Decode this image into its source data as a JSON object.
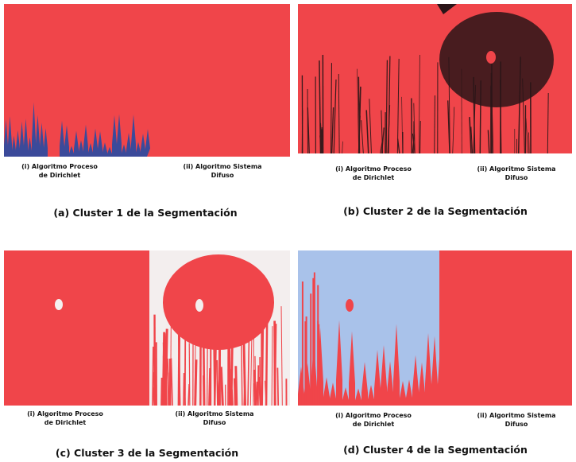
{
  "panels": [
    {
      "caption": "(a) Cluster 1 de la Segmentación",
      "sublabels": [
        [
          "(i) Algoritmo Proceso",
          "de Dirichlet"
        ],
        [
          "(ii) Algoritmo Sistema",
          "Difuso"
        ]
      ]
    },
    {
      "caption": "(b) Cluster 2 de la Segmentación",
      "sublabels": [
        [
          "(i) Algoritmo Proceso",
          "de Dirichlet"
        ],
        [
          "(ii) Algoritmo Sistema",
          "Difuso"
        ]
      ]
    },
    {
      "caption": "(c) Cluster 3 de la Segmentación",
      "sublabels": [
        [
          "(i) Algoritmo Proceso",
          "de Dirichlet"
        ],
        [
          "(ii) Algoritmo Sistema",
          "Difuso"
        ]
      ]
    },
    {
      "caption": "(d) Cluster 4 de la Segmentación",
      "sublabels": [
        [
          "(i) Algoritmo Proceso",
          "de Dirichlet"
        ],
        [
          "(ii) Algoritmo Sistema",
          "Difuso"
        ]
      ]
    }
  ]
}
